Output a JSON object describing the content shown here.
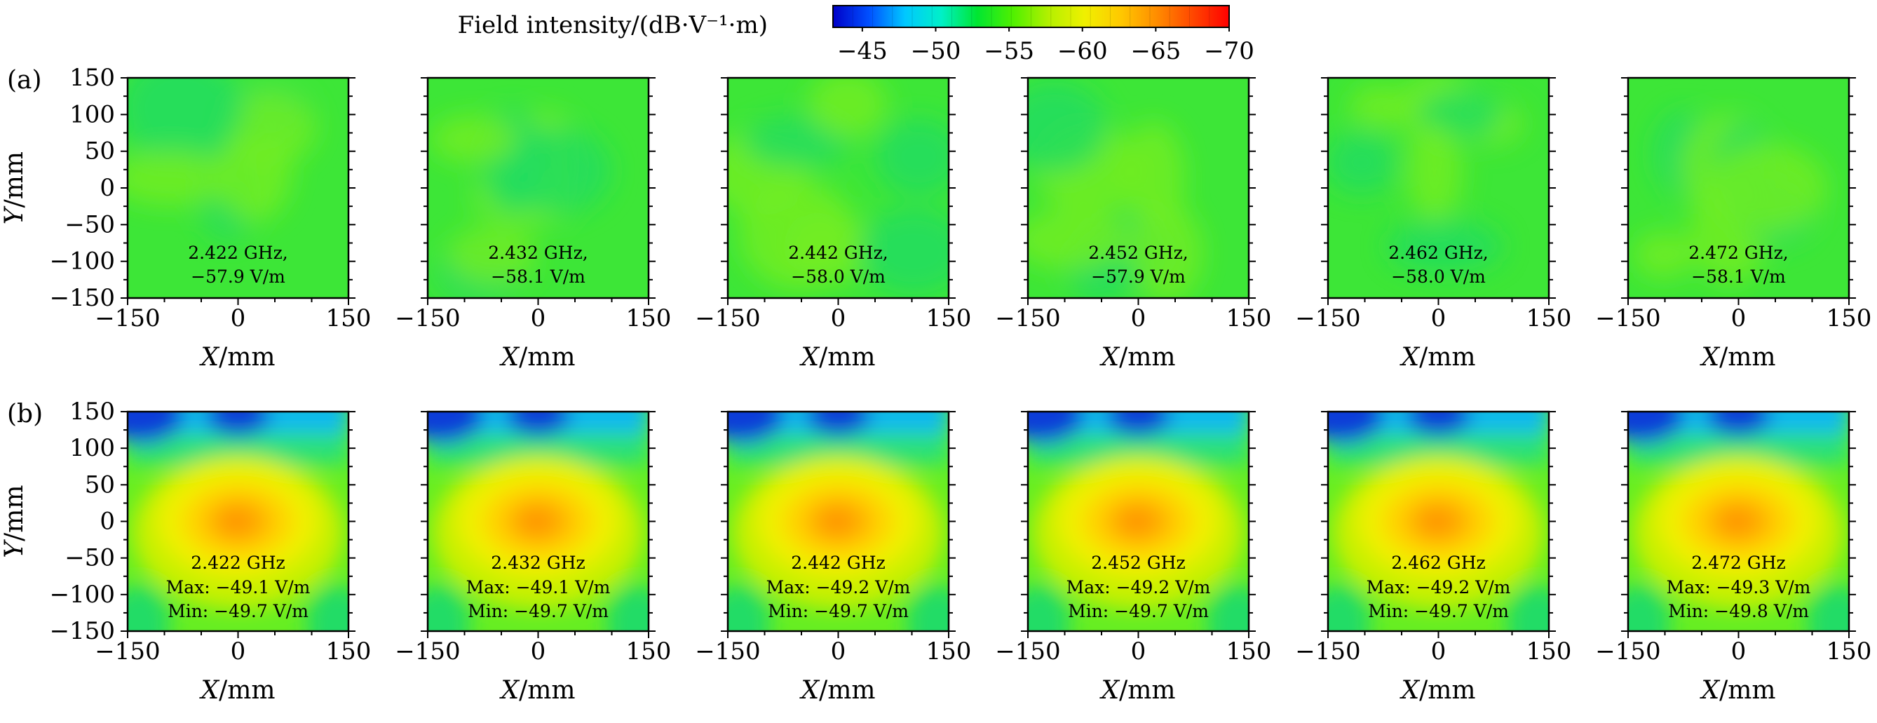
{
  "chart_data": {
    "type": "heatmap",
    "colorbar": {
      "title": "Field intensity/(dB·V⁻¹·m)",
      "tick_labels": [
        "−45",
        "−50",
        "−55",
        "−60",
        "−65",
        "−70"
      ],
      "ticks": [
        -45,
        -50,
        -55,
        -60,
        -65,
        -70
      ],
      "range": [
        -43,
        -70
      ],
      "colors": [
        "#0000c8",
        "#0050ff",
        "#00c8ff",
        "#00f0c8",
        "#00e632",
        "#50f000",
        "#b4f000",
        "#f0f000",
        "#ffc800",
        "#ff8c00",
        "#ff4600",
        "#ff0000"
      ]
    },
    "x_tick_labels": [
      "−150",
      "0",
      "150"
    ],
    "y_tick_labels": [
      "150",
      "100",
      "50",
      "0",
      "−50",
      "−100",
      "−150"
    ],
    "xlabel": "X/mm",
    "ylabel": "Y/mm",
    "xlim": [
      -150,
      150
    ],
    "ylim": [
      -150,
      150
    ],
    "rows": [
      {
        "label": "(a)",
        "panels": [
          {
            "freq": "2.422 GHz,",
            "value": "−57.9 V/m",
            "mean": -57.9
          },
          {
            "freq": "2.432 GHz,",
            "value": "−58.1 V/m",
            "mean": -58.1
          },
          {
            "freq": "2.442 GHz,",
            "value": "−58.0 V/m",
            "mean": -58.0
          },
          {
            "freq": "2.452 GHz,",
            "value": "−57.9 V/m",
            "mean": -57.9
          },
          {
            "freq": "2.462 GHz,",
            "value": "−58.0 V/m",
            "mean": -58.0
          },
          {
            "freq": "2.472 GHz,",
            "value": "−58.1 V/m",
            "mean": -58.1
          }
        ]
      },
      {
        "label": "(b)",
        "panels": [
          {
            "freq": "2.422 GHz",
            "max": "Max: −49.1 V/m",
            "min": "Min: −49.7 V/m",
            "max_value": -49.1,
            "min_value": -49.7
          },
          {
            "freq": "2.432 GHz",
            "max": "Max: −49.1 V/m",
            "min": "Min: −49.7 V/m",
            "max_value": -49.1,
            "min_value": -49.7
          },
          {
            "freq": "2.442 GHz",
            "max": "Max: −49.2 V/m",
            "min": "Min: −49.7 V/m",
            "max_value": -49.2,
            "min_value": -49.7
          },
          {
            "freq": "2.452 GHz",
            "max": "Max: −49.2 V/m",
            "min": "Min: −49.7 V/m",
            "max_value": -49.2,
            "min_value": -49.7
          },
          {
            "freq": "2.462 GHz",
            "max": "Max: −49.2 V/m",
            "min": "Min: −49.7 V/m",
            "max_value": -49.2,
            "min_value": -49.7
          },
          {
            "freq": "2.472 GHz",
            "max": "Max: −49.3 V/m",
            "min": "Min: −49.8 V/m",
            "max_value": -49.3,
            "min_value": -49.8
          }
        ]
      }
    ]
  }
}
